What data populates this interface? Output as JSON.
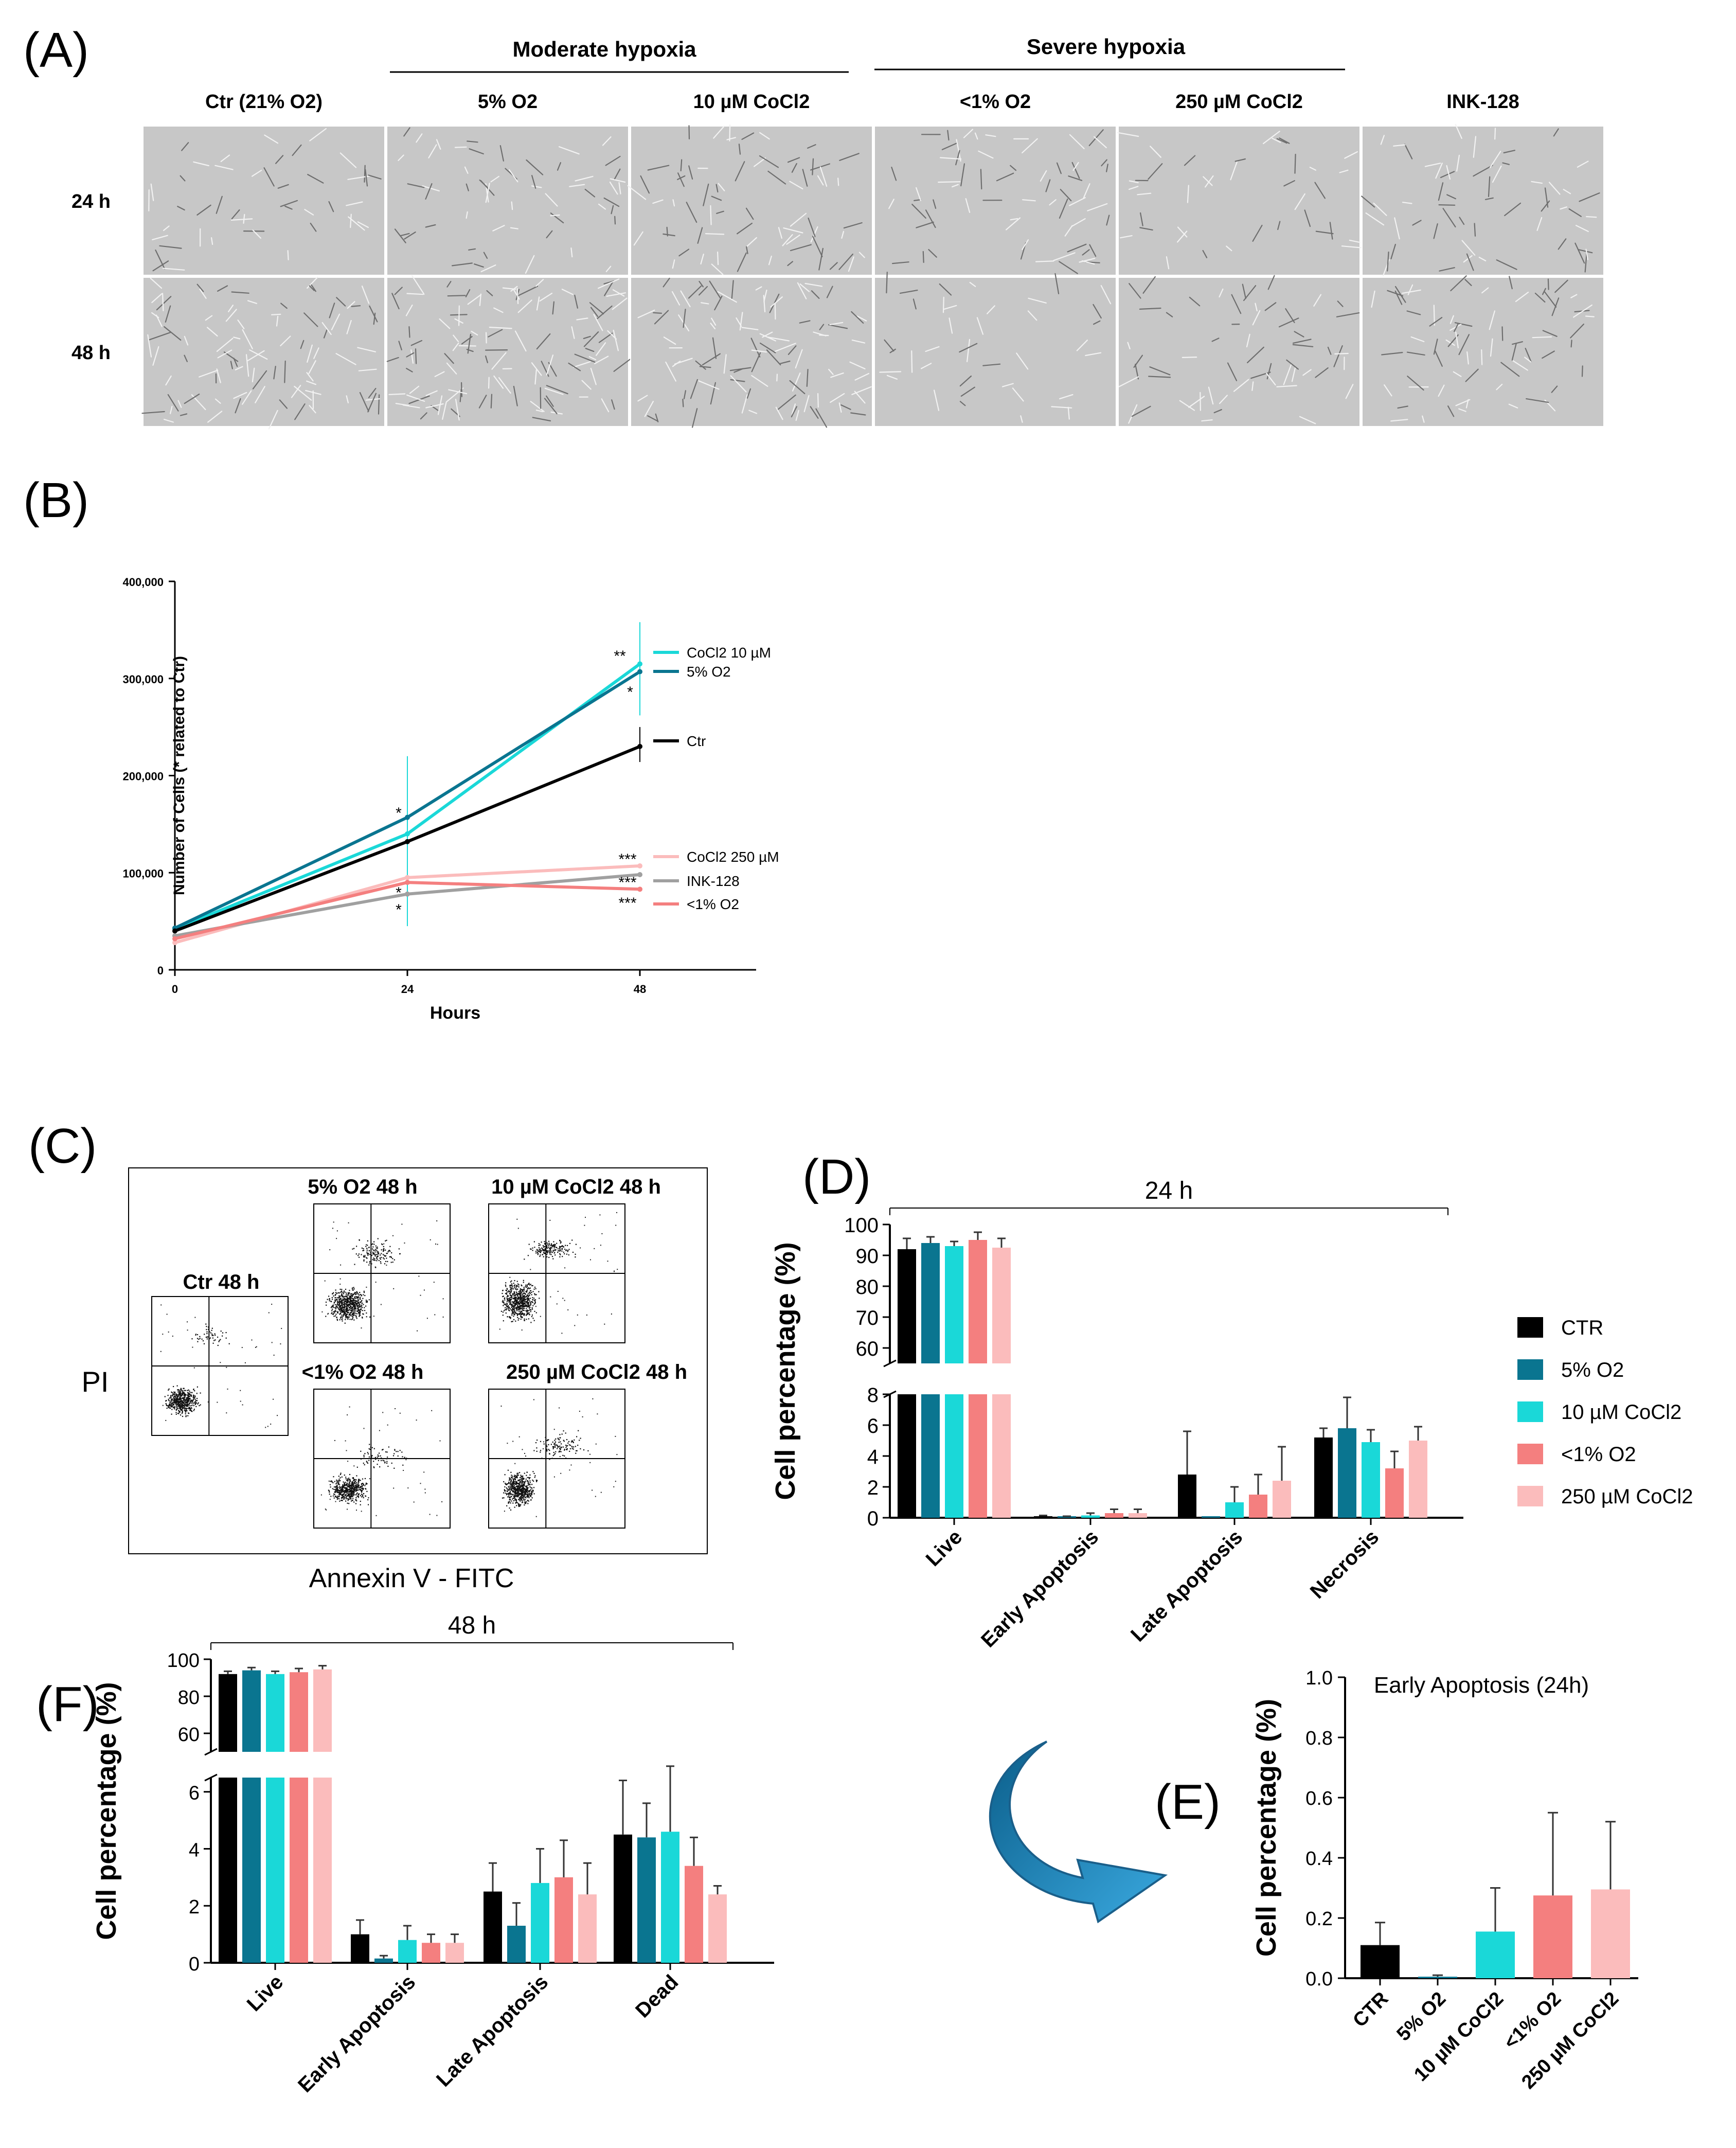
{
  "panel_labels": {
    "A": "(A)",
    "B": "(B)",
    "C": "(C)",
    "D": "(D)",
    "E": "(E)",
    "F": "(F)"
  },
  "panelA": {
    "group_moderate": "Moderate hypoxia",
    "group_severe": "Severe hypoxia",
    "columns": [
      "Ctr (21% O2)",
      "5% O2",
      "10 µM CoCl2",
      "<1% O2",
      "250 µM CoCl2",
      "INK-128"
    ],
    "rows": [
      "24 h",
      "48 h"
    ],
    "density": [
      [
        0.35,
        0.45,
        0.55,
        0.5,
        0.3,
        0.45
      ],
      [
        0.75,
        0.95,
        0.8,
        0.3,
        0.45,
        0.55
      ]
    ]
  },
  "panelC": {
    "y_label": "PI",
    "x_label": "Annexin V - FITC",
    "plots": [
      "Ctr 48 h",
      "5% O2 48 h",
      "10 µM CoCl2 48 h",
      "<1% O2 48 h",
      "250 µM CoCl2 48 h"
    ]
  },
  "colors": {
    "CTR": "#000000",
    "5% O2": "#0a7590",
    "10 µM CoCl2": "#1ad8d8",
    "<1% O2": "#f47f7f",
    "250 µM CoCl2": "#fbbcbc",
    "INK-128": "#a0a0a0"
  },
  "chart_data": [
    {
      "id": "B",
      "type": "line",
      "xlabel": "Hours",
      "ylabel": "Number of Cells (* related to Ctr)",
      "x": [
        0,
        24,
        48
      ],
      "xlim": [
        0,
        60
      ],
      "ylim": [
        0,
        400000
      ],
      "yticks": [
        "0",
        "100,000",
        "200,000",
        "300,000",
        "400,000"
      ],
      "xticks": [
        "0",
        "24",
        "48"
      ],
      "series": [
        {
          "name": "CoCl2 10 µM",
          "values": [
            42000,
            140000,
            315000
          ],
          "color": "#1ad8d8"
        },
        {
          "name": "5% O2",
          "values": [
            43000,
            157000,
            307000
          ],
          "color": "#0a7590"
        },
        {
          "name": "Ctr",
          "values": [
            40000,
            132000,
            230000
          ],
          "color": "#000000"
        },
        {
          "name": "CoCl2 250 µM",
          "values": [
            28000,
            95000,
            107000
          ],
          "color": "#fbbcbc"
        },
        {
          "name": "INK-128",
          "values": [
            35000,
            78000,
            98000
          ],
          "color": "#a0a0a0"
        },
        {
          "name": "<1% O2",
          "values": [
            32000,
            90000,
            83000
          ],
          "color": "#f47f7f"
        }
      ],
      "annotations": [
        "**",
        "*",
        "*",
        "***",
        "***",
        "***",
        "*",
        "*"
      ]
    },
    {
      "id": "D",
      "type": "bar",
      "title": "24 h",
      "ylabel": "Cell percentage (%)",
      "categories": [
        "Live",
        "Early Apoptosis",
        "Late Apoptosis",
        "Necrosis"
      ],
      "upper_ticks": [
        "60",
        "70",
        "80",
        "90",
        "100"
      ],
      "lower_ticks": [
        "0",
        "2",
        "4",
        "6",
        "8"
      ],
      "series": [
        {
          "name": "CTR",
          "values": [
            92,
            0.1,
            2.8,
            5.2
          ],
          "errors": [
            3.5,
            0.05,
            2.8,
            0.6
          ]
        },
        {
          "name": "5% O2",
          "values": [
            94,
            0.05,
            0,
            5.8
          ],
          "errors": [
            2,
            0.05,
            0,
            2
          ]
        },
        {
          "name": "10 µM CoCl2",
          "values": [
            93,
            0.15,
            1.0,
            4.9
          ],
          "errors": [
            1.5,
            0.15,
            1.0,
            0.8
          ]
        },
        {
          "name": "<1% O2",
          "values": [
            95,
            0.3,
            1.5,
            3.2
          ],
          "errors": [
            2.5,
            0.25,
            1.3,
            1.1
          ]
        },
        {
          "name": "250 µM CoCl2",
          "values": [
            92.5,
            0.3,
            2.4,
            5.0
          ],
          "errors": [
            3,
            0.25,
            2.2,
            0.9
          ]
        }
      ]
    },
    {
      "id": "E",
      "type": "bar",
      "title": "Early Apoptosis (24h)",
      "ylabel": "Cell percentage (%)",
      "ylim": [
        0,
        1.0
      ],
      "yticks": [
        "0.0",
        "0.2",
        "0.4",
        "0.6",
        "0.8",
        "1.0"
      ],
      "categories": [
        "CTR",
        "5% O2",
        "10 µM CoCl2",
        "<1% O2",
        "250 µM CoCl2"
      ],
      "values": [
        0.11,
        0.005,
        0.155,
        0.275,
        0.295
      ],
      "errors": [
        0.075,
        0.005,
        0.145,
        0.275,
        0.225
      ]
    },
    {
      "id": "F",
      "type": "bar",
      "title": "48 h",
      "ylabel": "Cell percentage (%)",
      "categories": [
        "Live",
        "Early Apoptosis",
        "Late Apoptosis",
        "Dead"
      ],
      "upper_ticks": [
        "60",
        "80",
        "100"
      ],
      "lower_ticks": [
        "0",
        "2",
        "4",
        "6"
      ],
      "series": [
        {
          "name": "CTR",
          "values": [
            92,
            1.0,
            2.5,
            4.5
          ],
          "errors": [
            1.5,
            0.5,
            1.0,
            1.9
          ]
        },
        {
          "name": "5% O2",
          "values": [
            94,
            0.15,
            1.3,
            4.4
          ],
          "errors": [
            1.5,
            0.1,
            0.8,
            1.2
          ]
        },
        {
          "name": "10 µM CoCl2",
          "values": [
            92,
            0.8,
            2.8,
            4.6
          ],
          "errors": [
            1.5,
            0.5,
            1.2,
            2.3
          ]
        },
        {
          "name": "<1% O2",
          "values": [
            93,
            0.7,
            3.0,
            3.4
          ],
          "errors": [
            2,
            0.3,
            1.3,
            1.0
          ]
        },
        {
          "name": "250 µM CoCl2",
          "values": [
            94.5,
            0.7,
            2.4,
            2.4
          ],
          "errors": [
            2,
            0.3,
            1.1,
            0.3
          ]
        }
      ]
    }
  ]
}
